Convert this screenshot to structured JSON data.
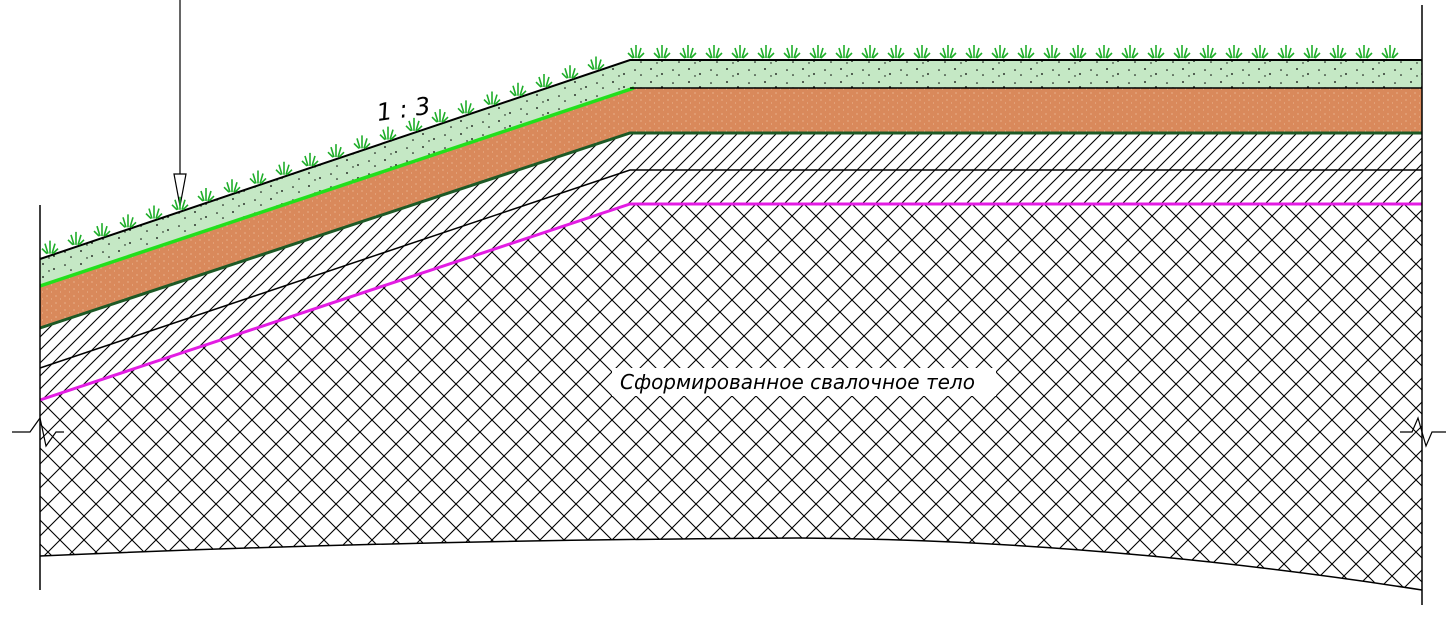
{
  "drawing": {
    "slope_label": "1 : 3",
    "body_label": "Сформированное свалочное тело"
  },
  "colors": {
    "topsoil_fill": "#c5e8c5",
    "fertile_layer_fill": "#d9895b",
    "layer_boundary": "#1d5a26",
    "bright_green_line": "#22e01c",
    "waste_body_boundary": "#e31ce3",
    "grass": "#1fae2a",
    "outline": "#000000"
  },
  "icons": {
    "grass": "grass-tuft-icon",
    "pointer": "arrow-down-icon",
    "break_left": "break-symbol-icon",
    "break_right": "break-symbol-icon"
  }
}
